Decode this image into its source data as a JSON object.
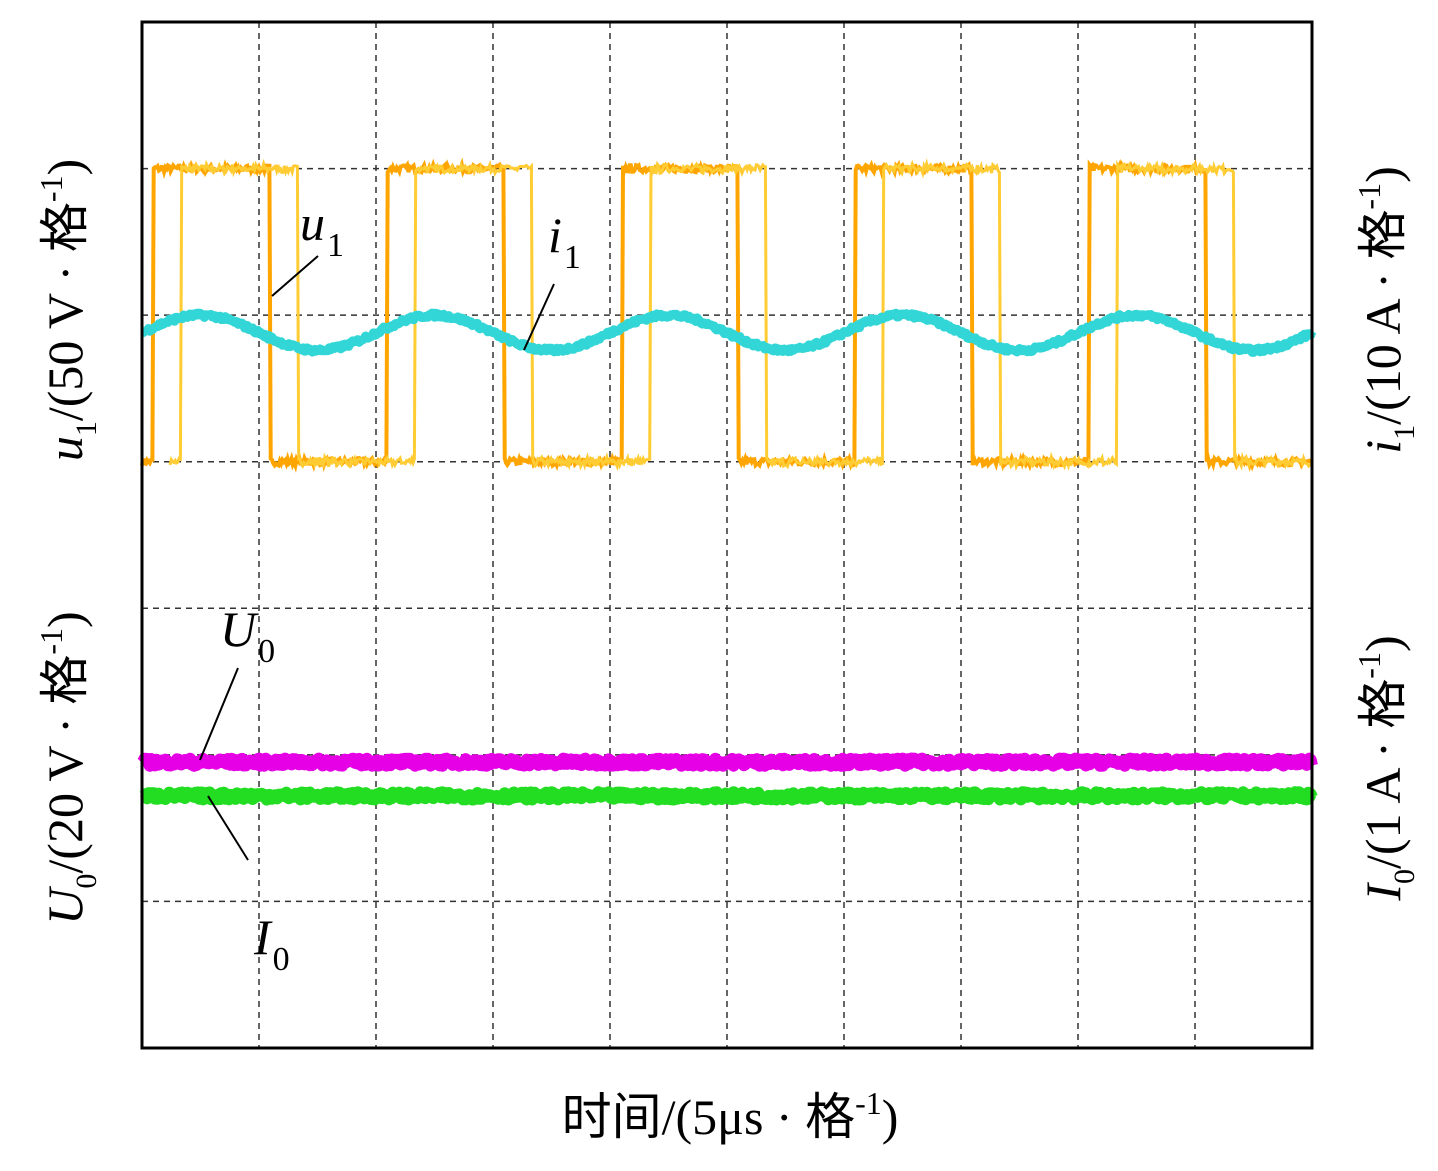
{
  "chart_data": {
    "type": "line",
    "title": "",
    "xlabel": "时间/(5μs · 格⁻¹)",
    "x_divisions": 10,
    "y_divisions": 7,
    "xlim": [
      0,
      10
    ],
    "ylim": [
      0,
      7
    ],
    "grid": true,
    "axes": {
      "x": {
        "prefix": "时间/(5μs · 格",
        "sup": "-1",
        "suffix": ")"
      },
      "left_top": {
        "sym": "u",
        "sub": "1",
        "unit": "/(50 V · 格",
        "sup": "-1",
        "suffix": ")"
      },
      "left_bottom": {
        "sym": "U",
        "sub": "0",
        "unit": "/(20 V · 格",
        "sup": "-1",
        "suffix": ")"
      },
      "right_top": {
        "sym": "i",
        "sub": "1",
        "unit": "/(10 A · 格",
        "sup": "-1",
        "suffix": ")"
      },
      "right_bottom": {
        "sym": "I",
        "sub": "0",
        "unit": "/(1 A · 格",
        "sup": "-1",
        "suffix": ")"
      }
    },
    "series": [
      {
        "name": "u1",
        "label_sym": "u",
        "label_sub": "1",
        "color": "#ffa500",
        "kind": "square",
        "high_div": 6.0,
        "low_div": 4.0,
        "period_div": 2.0,
        "rise_div": 0.1,
        "fall_div": 1.1,
        "start_low_until_div": 0.0
      },
      {
        "name": "i1",
        "label_sym": "i",
        "label_sub": "1",
        "color": "#33d6d6",
        "kind": "sine",
        "center_div": 4.88,
        "amplitude_div": 0.12,
        "period_div": 2.0,
        "peak_at_div": 0.5
      },
      {
        "name": "U0",
        "label_sym": "U",
        "label_sub": "0",
        "color": "#e600e6",
        "kind": "flat",
        "level_div": 1.95
      },
      {
        "name": "I0",
        "label_sym": "I",
        "label_sub": "0",
        "color": "#22dd22",
        "kind": "flat",
        "level_div": 1.72
      }
    ]
  },
  "colors": {
    "frame": "#000000",
    "grid": "#333333"
  }
}
